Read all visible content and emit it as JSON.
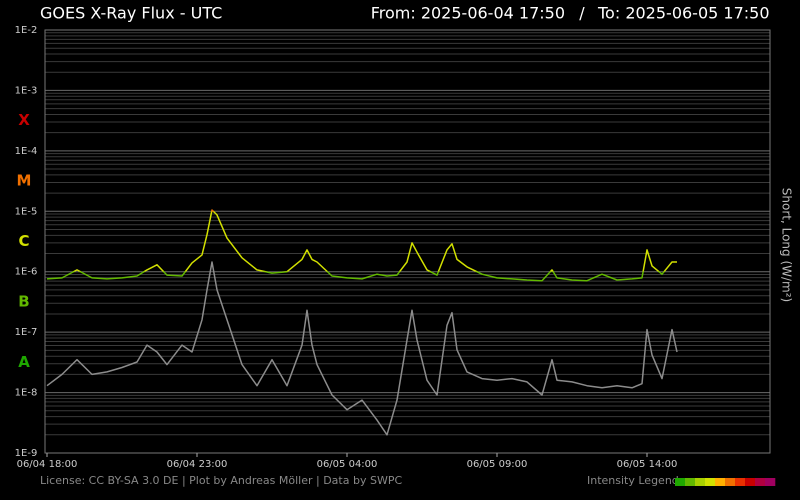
{
  "chart_data": {
    "type": "line",
    "title": "GOES X-Ray Flux - UTC",
    "range_from": "From: 2025-06-04 17:50",
    "range_separator": "/",
    "range_to": "To: 2025-06-05 17:50",
    "y_label": "Short, Long (W/m²)",
    "log_y": true,
    "grid": true,
    "minor_grid": true,
    "xlim": [
      "2025-06-04 17:50",
      "2025-06-05 17:50"
    ],
    "xticks": [
      {
        "value": "2025-06-04 18:00",
        "label": "06/04 18:00"
      },
      {
        "value": "2025-06-04 23:00",
        "label": "06/04 23:00"
      },
      {
        "value": "2025-06-05 04:00",
        "label": "06/05 04:00"
      },
      {
        "value": "2025-06-05 09:00",
        "label": "06/05 09:00"
      },
      {
        "value": "2025-06-05 14:00",
        "label": "06/05 14:00"
      }
    ],
    "ylim": [
      1e-09,
      0.01
    ],
    "yticks": [
      {
        "value": 1e-09,
        "label": "1E-9"
      },
      {
        "value": 1e-08,
        "label": "1E-8"
      },
      {
        "value": 1e-07,
        "label": "1E-7"
      },
      {
        "value": 1e-06,
        "label": "1E-6"
      },
      {
        "value": 1e-05,
        "label": "1E-5"
      },
      {
        "value": 0.0001,
        "label": "1E-4"
      },
      {
        "value": 0.001,
        "label": "1E-3"
      },
      {
        "value": 0.01,
        "label": "1E-2"
      }
    ],
    "flare_classes": [
      {
        "label": "A",
        "threshold": 1e-08,
        "color": "#1fa800"
      },
      {
        "label": "B",
        "threshold": 1e-07,
        "color": "#62b800"
      },
      {
        "label": "C",
        "threshold": 1e-06,
        "color": "#d2e000"
      },
      {
        "label": "M",
        "threshold": 1e-05,
        "color": "#f07000"
      },
      {
        "label": "X",
        "threshold": 0.0001,
        "color": "#c80000"
      }
    ],
    "x": [
      "2025-06-04 18:00",
      "2025-06-04 18:30",
      "2025-06-04 19:00",
      "2025-06-04 19:30",
      "2025-06-04 20:00",
      "2025-06-04 20:30",
      "2025-06-04 21:00",
      "2025-06-04 21:20",
      "2025-06-04 21:40",
      "2025-06-04 22:00",
      "2025-06-04 22:30",
      "2025-06-04 22:50",
      "2025-06-04 23:10",
      "2025-06-04 23:20",
      "2025-06-04 23:30",
      "2025-06-04 23:40",
      "2025-06-05 00:00",
      "2025-06-05 00:30",
      "2025-06-05 01:00",
      "2025-06-05 01:30",
      "2025-06-05 02:00",
      "2025-06-05 02:30",
      "2025-06-05 02:40",
      "2025-06-05 02:50",
      "2025-06-05 03:00",
      "2025-06-05 03:30",
      "2025-06-05 04:00",
      "2025-06-05 04:30",
      "2025-06-05 05:00",
      "2025-06-05 05:20",
      "2025-06-05 05:40",
      "2025-06-05 06:00",
      "2025-06-05 06:10",
      "2025-06-05 06:20",
      "2025-06-05 06:40",
      "2025-06-05 07:00",
      "2025-06-05 07:20",
      "2025-06-05 07:30",
      "2025-06-05 07:40",
      "2025-06-05 08:00",
      "2025-06-05 08:30",
      "2025-06-05 09:00",
      "2025-06-05 09:30",
      "2025-06-05 10:00",
      "2025-06-05 10:30",
      "2025-06-05 10:50",
      "2025-06-05 11:00",
      "2025-06-05 11:30",
      "2025-06-05 12:00",
      "2025-06-05 12:30",
      "2025-06-05 13:00",
      "2025-06-05 13:30",
      "2025-06-05 13:50",
      "2025-06-05 14:00",
      "2025-06-05 14:10",
      "2025-06-05 14:30",
      "2025-06-05 14:50",
      "2025-06-05 15:00"
    ],
    "series": [
      {
        "color": "#8c8c8c",
        "values": [
          1.3e-08,
          2e-08,
          3.5e-08,
          2e-08,
          2.2e-08,
          2.6e-08,
          3.2e-08,
          6.1e-08,
          4.7e-08,
          2.9e-08,
          6.1e-08,
          4.7e-08,
          1.6e-07,
          5e-07,
          1.45e-06,
          5e-07,
          1.6e-07,
          2.9e-08,
          1.3e-08,
          3.5e-08,
          1.3e-08,
          6.1e-08,
          2.3e-07,
          6.1e-08,
          2.9e-08,
          9.1e-09,
          5.2e-09,
          7.5e-09,
          3.5e-09,
          2e-09,
          7.5e-09,
          7.4e-08,
          2.3e-07,
          7.4e-08,
          1.6e-08,
          9.1e-09,
          1.3e-07,
          2.1e-07,
          5.1e-08,
          2.2e-08,
          1.7e-08,
          1.6e-08,
          1.7e-08,
          1.5e-08,
          9.1e-09,
          3.5e-08,
          1.6e-08,
          1.5e-08,
          1.3e-08,
          1.2e-08,
          1.3e-08,
          1.2e-08,
          1.4e-08,
          1.1e-07,
          4.2e-08,
          1.7e-08,
          1.1e-07,
          4.7e-08
        ]
      },
      {
        "color_by": "flare_classes",
        "values": [
          7.6e-07,
          7.9e-07,
          1.07e-06,
          7.9e-07,
          7.6e-07,
          7.9e-07,
          8.5e-07,
          1.07e-06,
          1.3e-06,
          8.8e-07,
          8.5e-07,
          1.4e-06,
          1.9e-06,
          4.1e-06,
          1.05e-05,
          8.7e-06,
          3.6e-06,
          1.7e-06,
          1.07e-06,
          9.5e-07,
          1e-06,
          1.6e-06,
          2.3e-06,
          1.6e-06,
          1.45e-06,
          8.5e-07,
          7.9e-07,
          7.6e-07,
          9.1e-07,
          8.5e-07,
          8.8e-07,
          1.45e-06,
          3e-06,
          2.1e-06,
          1.07e-06,
          8.8e-07,
          2.3e-06,
          2.9e-06,
          1.6e-06,
          1.2e-06,
          9.1e-07,
          7.9e-07,
          7.6e-07,
          7.3e-07,
          7.1e-07,
          1.07e-06,
          7.9e-07,
          7.3e-07,
          7.1e-07,
          9.1e-07,
          7.3e-07,
          7.6e-07,
          7.9e-07,
          2.3e-06,
          1.25e-06,
          9.1e-07,
          1.45e-06,
          1.45e-06
        ]
      }
    ],
    "footer": "License: CC BY-SA 3.0 DE | Plot by Andreas Möller | Data by SWPC",
    "intensity_legend": {
      "label": "Intensity Legend",
      "colors": [
        "#1fa800",
        "#62b800",
        "#a8d000",
        "#d2e000",
        "#ffb000",
        "#f07000",
        "#e83000",
        "#c80000",
        "#b00040",
        "#a00060"
      ]
    }
  }
}
